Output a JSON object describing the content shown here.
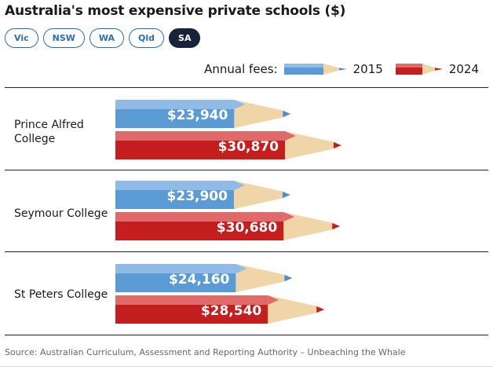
{
  "title": "Australia's most expensive private schools ($)",
  "tabs": [
    {
      "label": "Vic",
      "active": false
    },
    {
      "label": "NSW",
      "active": false
    },
    {
      "label": "WA",
      "active": false
    },
    {
      "label": "Qld",
      "active": false
    },
    {
      "label": "SA",
      "active": true
    }
  ],
  "legend": {
    "label": "Annual fees:",
    "items": [
      {
        "year": "2015",
        "color": "#5b9bd5"
      },
      {
        "year": "2024",
        "color": "#c41e1e"
      }
    ]
  },
  "colors": {
    "2015_body": "#5b9bd5",
    "2015_light": "#8fbbe6",
    "2024_body": "#c41e1e",
    "2024_light": "#e06a6a",
    "wood": "#f0d5a8",
    "tip_2015": "#4a8fd4",
    "tip_2024": "#c41e1e"
  },
  "chart_data": {
    "type": "bar",
    "categories": [
      "Prince Alfred College",
      "Seymour College",
      "St Peters College"
    ],
    "series": [
      {
        "name": "2015",
        "values": [
          23940,
          23900,
          24160
        ]
      },
      {
        "name": "2024",
        "values": [
          30870,
          30680,
          28540
        ]
      }
    ],
    "data_labels": [
      [
        "$23,940",
        "$30,870"
      ],
      [
        "$23,900",
        "$30,680"
      ],
      [
        "$24,160",
        "$28,540"
      ]
    ],
    "xlim": [
      0,
      30870
    ]
  },
  "source": "Source: Australian Curriculum, Assessment and Reporting Authority – Unbeaching the Whale"
}
